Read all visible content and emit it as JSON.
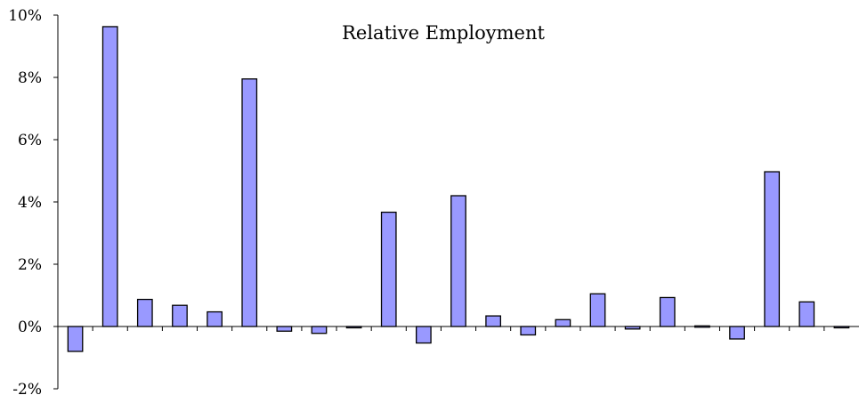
{
  "chart_data": {
    "type": "bar",
    "title": "Relative Employment",
    "xlabel": "",
    "ylabel": "",
    "ylim": [
      -2,
      10
    ],
    "yticks": [
      -2,
      0,
      2,
      4,
      6,
      8,
      10
    ],
    "ytick_labels": [
      "-2%",
      "0%",
      "2%",
      "4%",
      "6%",
      "8%",
      "10%"
    ],
    "grid": false,
    "legend": "none",
    "bar_color": "#9999ff",
    "categories": [
      "",
      "",
      "",
      "",
      "",
      "",
      "",
      "",
      "",
      "",
      "",
      "",
      "",
      "",
      "",
      "",
      "",
      "",
      "",
      "",
      "",
      "",
      ""
    ],
    "values": [
      -0.8,
      9.63,
      0.87,
      0.68,
      0.47,
      7.95,
      -0.15,
      -0.22,
      -0.04,
      3.67,
      -0.53,
      4.2,
      0.34,
      -0.27,
      0.22,
      1.05,
      -0.08,
      0.93,
      0.02,
      -0.4,
      4.97,
      0.79,
      -0.04
    ]
  }
}
